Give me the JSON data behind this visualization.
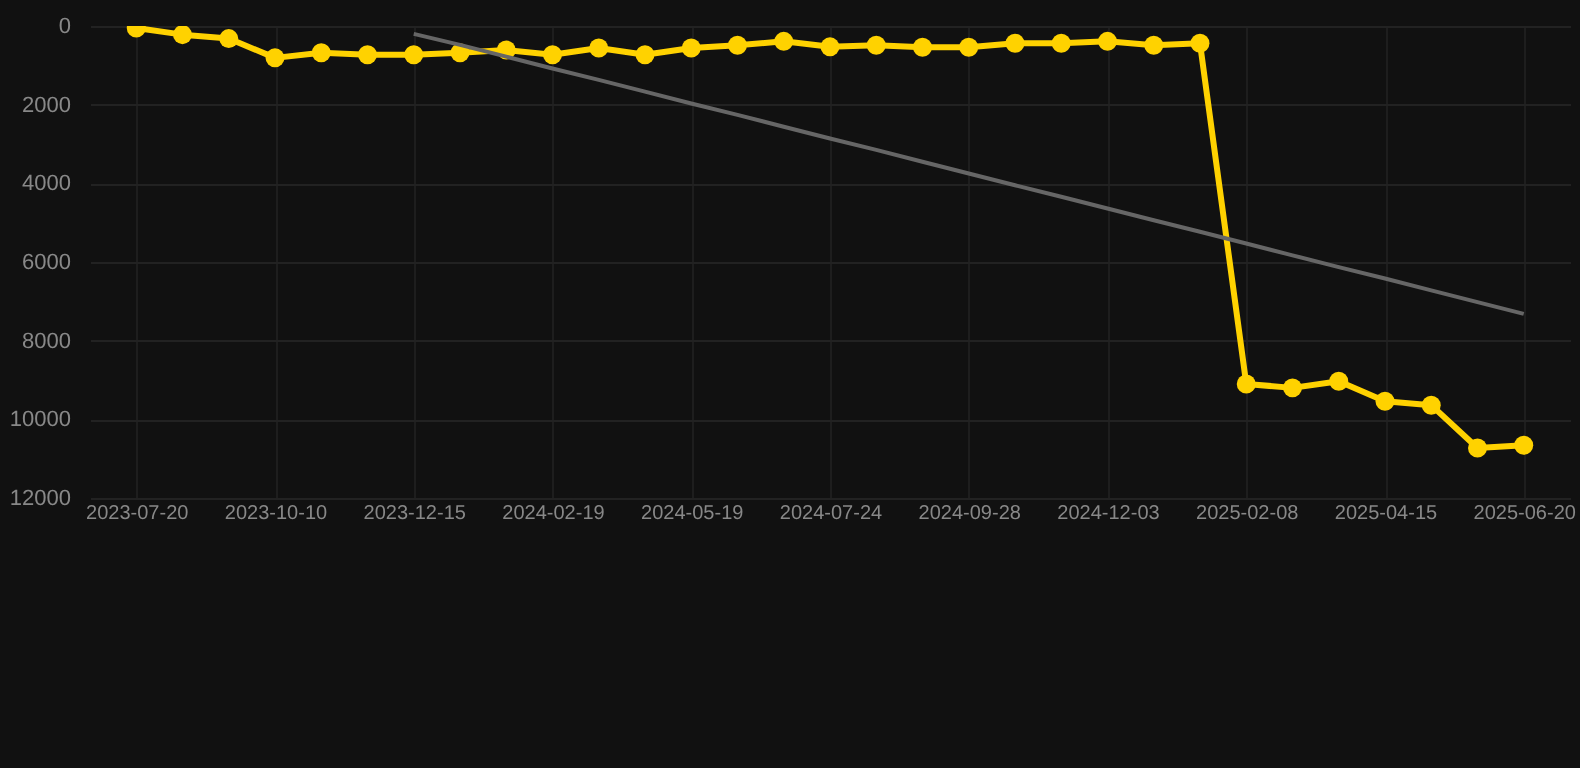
{
  "chart_data": {
    "type": "line",
    "categories": [
      "2023-07-20",
      null,
      null,
      "2023-10-10",
      null,
      null,
      "2023-12-15",
      null,
      null,
      "2024-02-19",
      null,
      null,
      "2024-05-19",
      null,
      null,
      "2024-07-24",
      null,
      null,
      "2024-09-28",
      null,
      null,
      "2024-12-03",
      null,
      null,
      "2025-02-08",
      null,
      null,
      "2025-04-15",
      null,
      null,
      "2025-06-20"
    ],
    "series": [
      {
        "color": "#ffd200",
        "marker": "circle",
        "values": [
          50,
          220,
          320,
          810,
          680,
          730,
          730,
          680,
          610,
          730,
          560,
          730,
          560,
          490,
          390,
          530,
          490,
          540,
          540,
          440,
          440,
          390,
          490,
          440,
          9100,
          9200,
          9030,
          9540,
          9640,
          10730,
          10660
        ]
      },
      {
        "color": "#666666",
        "marker": "none",
        "values": [
          null,
          null,
          null,
          null,
          null,
          null,
          200,
          480,
          780,
          1080,
          1370,
          1670,
          1970,
          2260,
          2560,
          2860,
          3150,
          3450,
          3750,
          4050,
          4340,
          4640,
          4940,
          5230,
          5530,
          5830,
          6130,
          6420,
          6720,
          7020,
          7320
        ]
      }
    ],
    "ylim": [
      12000,
      0
    ],
    "yticks": [
      0,
      2000,
      4000,
      6000,
      8000,
      10000,
      12000
    ],
    "grid": true,
    "line_style": "solid",
    "legend": false
  }
}
